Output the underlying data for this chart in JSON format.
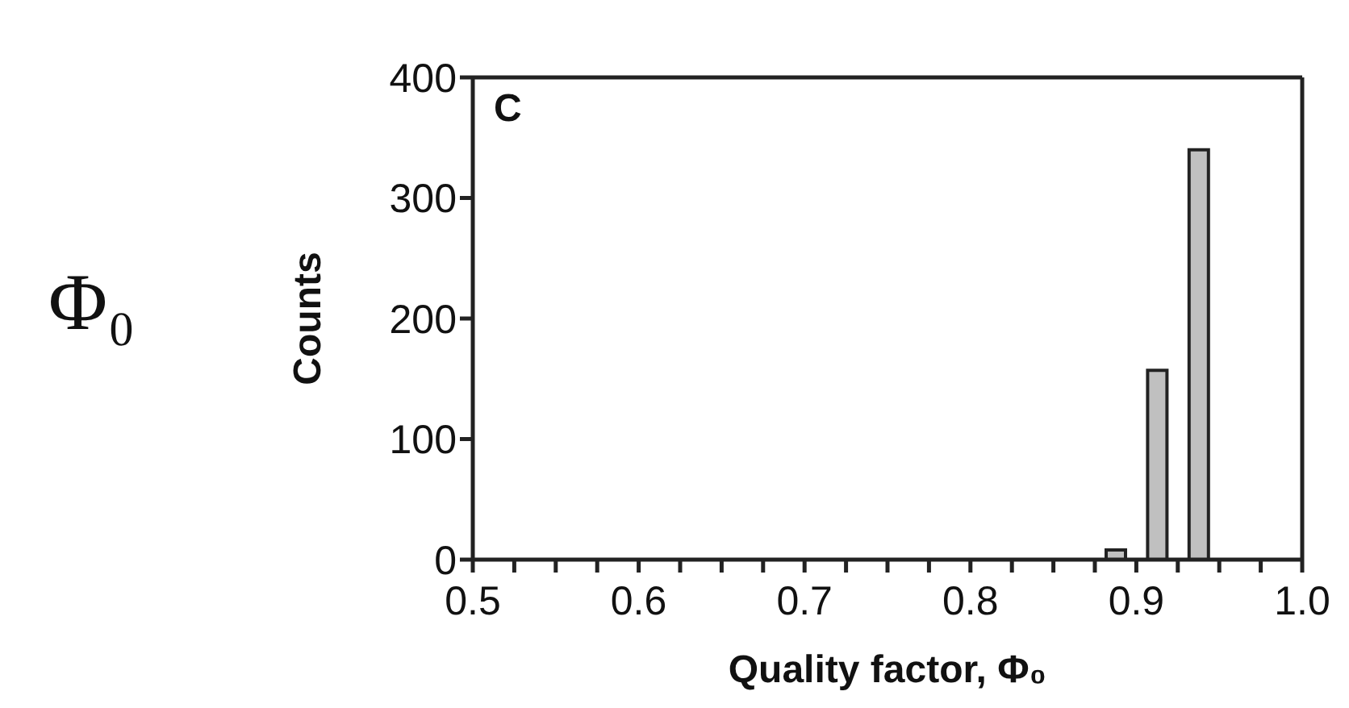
{
  "chart_data": {
    "type": "histogram",
    "xlabel": "Quality factor, Φ₀",
    "ylabel": "Counts",
    "bins": [
      0.875,
      0.9,
      0.925,
      0.95
    ],
    "values": [
      8,
      157,
      340
    ],
    "color": "#c0c0c0",
    "xlim": [
      0.5,
      1.0
    ],
    "xticks": [
      0.5,
      {
        "value": 0.525,
        "label": null
      },
      {
        "value": 0.55,
        "label": null
      },
      {
        "value": 0.575,
        "label": null
      },
      0.6,
      {
        "value": 0.625,
        "label": null
      },
      {
        "value": 0.65,
        "label": null
      },
      {
        "value": 0.675,
        "label": null
      },
      0.7,
      {
        "value": 0.725,
        "label": null
      },
      {
        "value": 0.75,
        "label": null
      },
      {
        "value": 0.775,
        "label": null
      },
      0.8,
      {
        "value": 0.825,
        "label": null
      },
      {
        "value": 0.85,
        "label": null
      },
      {
        "value": 0.875,
        "label": null
      },
      0.9,
      {
        "value": 0.925,
        "label": null
      },
      {
        "value": 0.95,
        "label": null
      },
      {
        "value": 0.975,
        "label": null
      },
      {
        "value": 1.0,
        "label": "1.0"
      }
    ],
    "ylim": [
      0,
      400
    ],
    "yticks": [
      0,
      100,
      200,
      300,
      400
    ],
    "grid": false,
    "annotations": [
      "C",
      "Φ₀"
    ]
  }
}
